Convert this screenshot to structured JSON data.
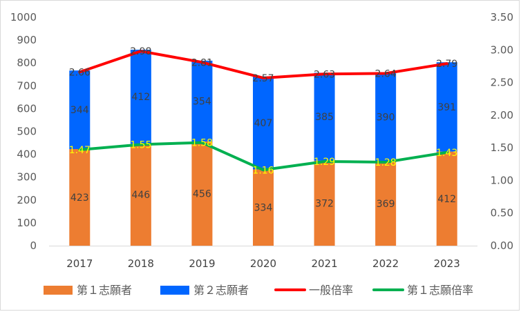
{
  "chart_data": {
    "type": "bar",
    "stacked": true,
    "categories": [
      "2017",
      "2018",
      "2019",
      "2020",
      "2021",
      "2022",
      "2023"
    ],
    "series": [
      {
        "name": "第１志願者",
        "kind": "bar",
        "axis": "left",
        "color": "#ed7d31",
        "values": [
          423,
          446,
          456,
          334,
          372,
          369,
          412
        ]
      },
      {
        "name": "第２志願者",
        "kind": "bar",
        "axis": "left",
        "color": "#0066ff",
        "values": [
          344,
          412,
          354,
          407,
          385,
          390,
          391
        ]
      },
      {
        "name": "一般倍率",
        "kind": "line",
        "axis": "right",
        "color": "#ff0000",
        "values": [
          2.66,
          2.98,
          2.81,
          2.57,
          2.63,
          2.64,
          2.79
        ],
        "labels": [
          "2.66",
          "2.98",
          "2.81",
          "2.57",
          "2.63",
          "2.64",
          "2.79"
        ]
      },
      {
        "name": "第１志願倍率",
        "kind": "line",
        "axis": "right",
        "color": "#00b050",
        "values": [
          1.47,
          1.55,
          1.58,
          1.16,
          1.29,
          1.28,
          1.43
        ],
        "labels": [
          "1.47",
          "1.55",
          "1.58",
          "1.16",
          "1.29",
          "1.28",
          "1.43"
        ]
      }
    ],
    "y_left": {
      "ylim": [
        0,
        1000
      ],
      "ticks": [
        "0",
        "100",
        "200",
        "300",
        "400",
        "500",
        "600",
        "700",
        "800",
        "900",
        "1000"
      ]
    },
    "y_right": {
      "ylim": [
        0,
        3.5
      ],
      "ticks": [
        "0.00",
        "0.50",
        "1.00",
        "1.50",
        "2.00",
        "2.50",
        "3.00",
        "3.50"
      ]
    },
    "grid": false,
    "legend_position": "bottom",
    "title": "",
    "xlabel": "",
    "ylabel": ""
  }
}
